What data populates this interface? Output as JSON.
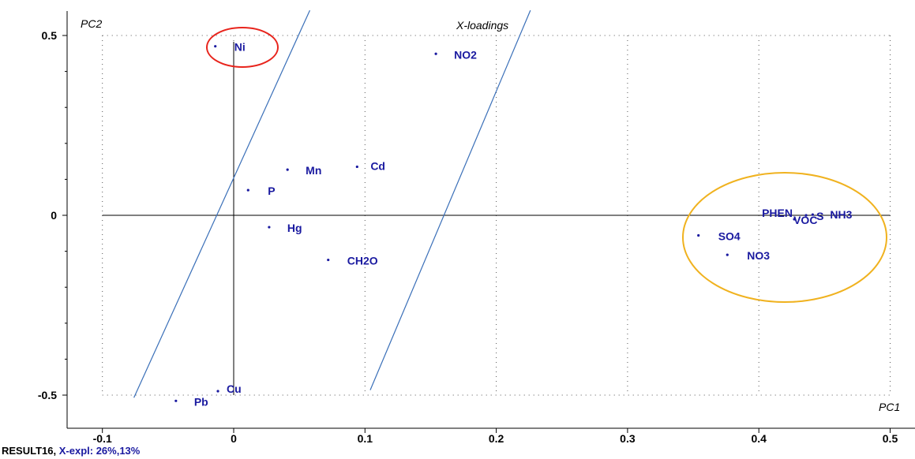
{
  "chart_data": {
    "type": "scatter",
    "title": "X-loadings",
    "xlabel": "PC1",
    "ylabel": "PC2",
    "xlim": [
      -0.11,
      0.51
    ],
    "ylim": [
      -0.54,
      0.57
    ],
    "x_ticks": [
      "-0.1",
      "0",
      "0.1",
      "0.2",
      "0.3",
      "0.4",
      "0.5"
    ],
    "y_ticks": [
      "0.5",
      "0",
      "-0.5"
    ],
    "grid": "dotted",
    "points": [
      {
        "label": "Ni",
        "x": -0.014,
        "y": 0.47
      },
      {
        "label": "NO2",
        "x": 0.154,
        "y": 0.449
      },
      {
        "label": "Mn",
        "x": 0.041,
        "y": 0.127
      },
      {
        "label": "Cd",
        "x": 0.094,
        "y": 0.135
      },
      {
        "label": "P",
        "x": 0.011,
        "y": 0.07
      },
      {
        "label": "Hg",
        "x": 0.027,
        "y": -0.033
      },
      {
        "label": "CH2O",
        "x": 0.072,
        "y": -0.124
      },
      {
        "label": "SO4",
        "x": 0.354,
        "y": -0.056
      },
      {
        "label": "PHEN",
        "x": 0.427,
        "y": -0.011
      },
      {
        "label": "VOC",
        "x": 0.427,
        "y": -0.011
      },
      {
        "label": "S",
        "x": 0.436,
        "y": 0.0
      },
      {
        "label": "NH3",
        "x": 0.441,
        "y": 0.002
      },
      {
        "label": "NO3",
        "x": 0.376,
        "y": -0.11
      },
      {
        "label": "Cu",
        "x": -0.012,
        "y": -0.489
      },
      {
        "label": "Pb",
        "x": -0.044,
        "y": -0.516
      }
    ],
    "annotation_lines": [
      {
        "from": [
          -0.076,
          -0.507
        ],
        "to": [
          0.058,
          0.57
        ]
      },
      {
        "from": [
          0.104,
          -0.486
        ],
        "to": [
          0.226,
          0.57
        ]
      }
    ],
    "highlight_ellipses": [
      {
        "around": "Ni",
        "color": "#e8241c"
      },
      {
        "around": [
          "SO4",
          "PHEN",
          "VOC",
          "S",
          "NH3",
          "NO3"
        ],
        "color": "#f0b21f"
      }
    ],
    "footer": {
      "result": "RESULT16,",
      "explained": "X-expl: 26%,13%"
    }
  },
  "colors": {
    "points": "#1a1aa0",
    "labels": "#1a1aa0",
    "guide_lines": "#3a6fb8",
    "red_ring": "#e8241c",
    "orange_ring": "#f0b21f"
  }
}
